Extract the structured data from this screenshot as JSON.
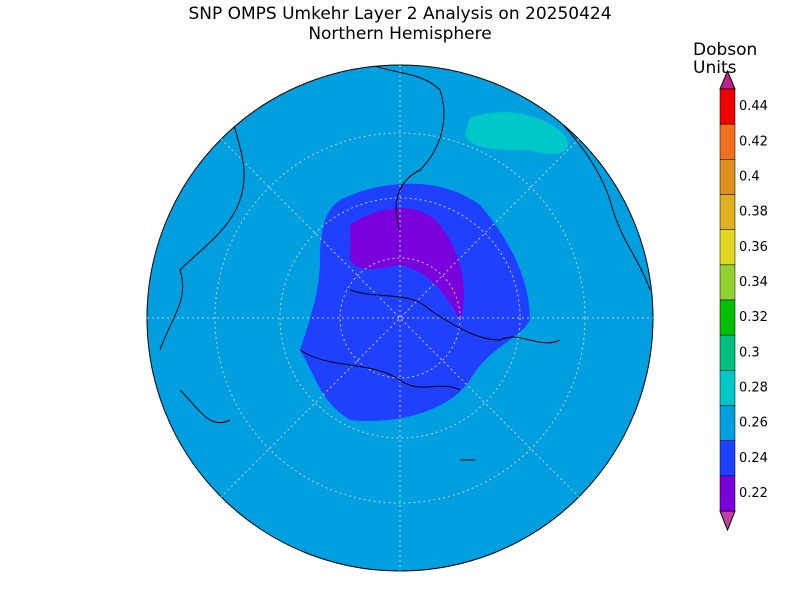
{
  "title": "SNP OMPS Umkehr Layer 2 Analysis on 20250424",
  "subtitle": "Northern Hemisphere",
  "colorbar": {
    "units": [
      "Dobson",
      "Units"
    ],
    "levels": [
      0.44,
      0.42,
      0.4,
      0.38,
      0.36,
      0.34,
      0.32,
      0.3,
      0.28,
      0.26,
      0.24,
      0.22
    ],
    "colors": [
      "#f00000",
      "#f07020",
      "#e09020",
      "#e0b020",
      "#e0d820",
      "#90d030",
      "#00c000",
      "#00c080",
      "#00c8c8",
      "#00a0e0",
      "#2040ff",
      "#7a00dc"
    ],
    "over_color": "#c0208c",
    "under_color": "#c040a8"
  }
}
